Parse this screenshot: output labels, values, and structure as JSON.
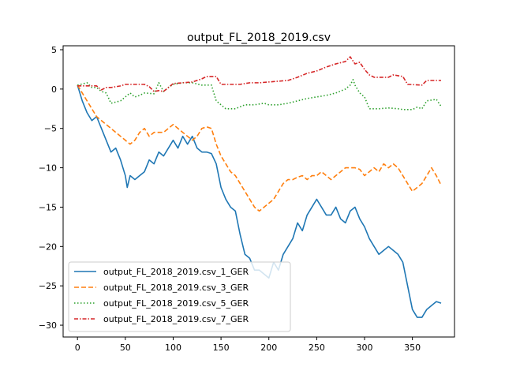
{
  "chart_data": {
    "type": "line",
    "title": "output_FL_2018_2019.csv",
    "xlabel": "",
    "ylabel": "",
    "xlim": [
      -15,
      394
    ],
    "ylim": [
      -31.5,
      5.5
    ],
    "xticks": [
      0,
      50,
      100,
      150,
      200,
      250,
      300,
      350
    ],
    "yticks": [
      5,
      0,
      -5,
      -10,
      -15,
      -20,
      -25,
      -30
    ],
    "xtick_labels": [
      "0",
      "50",
      "100",
      "150",
      "200",
      "250",
      "300",
      "350"
    ],
    "ytick_labels": [
      "5",
      "0",
      "−5",
      "−10",
      "−15",
      "−20",
      "−25",
      "−30"
    ],
    "grid": false,
    "legend_position": "lower-left",
    "series": [
      {
        "name": "output_FL_2018_2019.csv_1_GER",
        "color": "#1f77b4",
        "dash": "solid",
        "points": [
          [
            0,
            0.5
          ],
          [
            5,
            -1.5
          ],
          [
            10,
            -3
          ],
          [
            15,
            -4
          ],
          [
            20,
            -3.5
          ],
          [
            25,
            -5
          ],
          [
            30,
            -6.5
          ],
          [
            35,
            -8
          ],
          [
            40,
            -7.5
          ],
          [
            45,
            -9
          ],
          [
            50,
            -11
          ],
          [
            52,
            -12.5
          ],
          [
            55,
            -11
          ],
          [
            60,
            -11.5
          ],
          [
            65,
            -11
          ],
          [
            70,
            -10.5
          ],
          [
            75,
            -9
          ],
          [
            80,
            -9.5
          ],
          [
            85,
            -8
          ],
          [
            90,
            -8.5
          ],
          [
            95,
            -7.5
          ],
          [
            100,
            -6.5
          ],
          [
            105,
            -7.5
          ],
          [
            110,
            -6
          ],
          [
            115,
            -7
          ],
          [
            120,
            -6
          ],
          [
            125,
            -7.5
          ],
          [
            130,
            -8
          ],
          [
            135,
            -8
          ],
          [
            140,
            -8.2
          ],
          [
            145,
            -9.5
          ],
          [
            150,
            -12.5
          ],
          [
            155,
            -14
          ],
          [
            160,
            -15
          ],
          [
            165,
            -15.5
          ],
          [
            170,
            -18.5
          ],
          [
            175,
            -21
          ],
          [
            180,
            -21.5
          ],
          [
            185,
            -23
          ],
          [
            190,
            -23
          ],
          [
            195,
            -23.5
          ],
          [
            200,
            -24
          ],
          [
            205,
            -22
          ],
          [
            210,
            -23
          ],
          [
            215,
            -21
          ],
          [
            220,
            -20
          ],
          [
            225,
            -19
          ],
          [
            230,
            -17
          ],
          [
            235,
            -18
          ],
          [
            240,
            -16
          ],
          [
            245,
            -15
          ],
          [
            250,
            -14
          ],
          [
            255,
            -15
          ],
          [
            260,
            -16
          ],
          [
            265,
            -16
          ],
          [
            270,
            -15
          ],
          [
            275,
            -16.5
          ],
          [
            280,
            -17
          ],
          [
            285,
            -15.5
          ],
          [
            290,
            -15
          ],
          [
            295,
            -16.5
          ],
          [
            300,
            -17.5
          ],
          [
            305,
            -19
          ],
          [
            310,
            -20
          ],
          [
            315,
            -21
          ],
          [
            320,
            -20.5
          ],
          [
            325,
            -20
          ],
          [
            330,
            -20.5
          ],
          [
            335,
            -21
          ],
          [
            340,
            -22
          ],
          [
            345,
            -25
          ],
          [
            350,
            -28
          ],
          [
            355,
            -29
          ],
          [
            360,
            -29
          ],
          [
            365,
            -28
          ],
          [
            370,
            -27.5
          ],
          [
            375,
            -27
          ],
          [
            380,
            -27.2
          ]
        ]
      },
      {
        "name": "output_FL_2018_2019.csv_3_GER",
        "color": "#ff7f0e",
        "dash": "dashed",
        "points": [
          [
            0,
            0.5
          ],
          [
            5,
            -0.5
          ],
          [
            10,
            -1.5
          ],
          [
            15,
            -2.5
          ],
          [
            20,
            -3.5
          ],
          [
            25,
            -4
          ],
          [
            30,
            -4.5
          ],
          [
            35,
            -5
          ],
          [
            40,
            -5.5
          ],
          [
            45,
            -6
          ],
          [
            50,
            -6.5
          ],
          [
            55,
            -7
          ],
          [
            60,
            -6.5
          ],
          [
            65,
            -5.5
          ],
          [
            70,
            -5
          ],
          [
            75,
            -6
          ],
          [
            80,
            -5.5
          ],
          [
            85,
            -5.5
          ],
          [
            90,
            -5.5
          ],
          [
            95,
            -5
          ],
          [
            100,
            -4.5
          ],
          [
            105,
            -5
          ],
          [
            110,
            -5.5
          ],
          [
            115,
            -6
          ],
          [
            120,
            -6.5
          ],
          [
            125,
            -6
          ],
          [
            130,
            -5
          ],
          [
            135,
            -4.8
          ],
          [
            140,
            -5
          ],
          [
            145,
            -7
          ],
          [
            150,
            -8.5
          ],
          [
            155,
            -9.5
          ],
          [
            160,
            -10.5
          ],
          [
            165,
            -11
          ],
          [
            170,
            -12
          ],
          [
            175,
            -13
          ],
          [
            180,
            -14
          ],
          [
            185,
            -15
          ],
          [
            190,
            -15.5
          ],
          [
            195,
            -15
          ],
          [
            200,
            -14.5
          ],
          [
            205,
            -14
          ],
          [
            210,
            -13
          ],
          [
            215,
            -12
          ],
          [
            220,
            -11.5
          ],
          [
            225,
            -11.5
          ],
          [
            230,
            -11.2
          ],
          [
            235,
            -11
          ],
          [
            240,
            -11.5
          ],
          [
            245,
            -11
          ],
          [
            250,
            -11
          ],
          [
            255,
            -10.5
          ],
          [
            260,
            -11
          ],
          [
            265,
            -11.5
          ],
          [
            270,
            -11
          ],
          [
            275,
            -10.5
          ],
          [
            280,
            -10
          ],
          [
            285,
            -10
          ],
          [
            290,
            -10
          ],
          [
            295,
            -10.2
          ],
          [
            300,
            -11
          ],
          [
            305,
            -10.5
          ],
          [
            310,
            -10
          ],
          [
            315,
            -10.5
          ],
          [
            320,
            -9.5
          ],
          [
            325,
            -10
          ],
          [
            330,
            -9.5
          ],
          [
            335,
            -10
          ],
          [
            340,
            -11
          ],
          [
            345,
            -12
          ],
          [
            350,
            -13
          ],
          [
            355,
            -12.5
          ],
          [
            360,
            -12
          ],
          [
            365,
            -11
          ],
          [
            370,
            -10
          ],
          [
            375,
            -11
          ],
          [
            380,
            -12.2
          ]
        ]
      },
      {
        "name": "output_FL_2018_2019.csv_5_GER",
        "color": "#2ca02c",
        "dash": "dotted",
        "points": [
          [
            0,
            0.5
          ],
          [
            10,
            0.8
          ],
          [
            15,
            0.2
          ],
          [
            20,
            0.2
          ],
          [
            25,
            -0.3
          ],
          [
            30,
            -0.5
          ],
          [
            35,
            -1.8
          ],
          [
            45,
            -1.5
          ],
          [
            50,
            -1
          ],
          [
            55,
            -0.5
          ],
          [
            60,
            -1
          ],
          [
            65,
            -0.8
          ],
          [
            70,
            -0.5
          ],
          [
            80,
            -0.6
          ],
          [
            85,
            0.8
          ],
          [
            90,
            -0.3
          ],
          [
            95,
            0.2
          ],
          [
            100,
            0.6
          ],
          [
            110,
            0.8
          ],
          [
            120,
            0.8
          ],
          [
            130,
            0.5
          ],
          [
            140,
            0.5
          ],
          [
            145,
            -1.5
          ],
          [
            150,
            -2
          ],
          [
            155,
            -2.5
          ],
          [
            165,
            -2.5
          ],
          [
            175,
            -2
          ],
          [
            185,
            -2
          ],
          [
            195,
            -1.8
          ],
          [
            200,
            -2
          ],
          [
            210,
            -2
          ],
          [
            220,
            -1.8
          ],
          [
            230,
            -1.5
          ],
          [
            240,
            -1.2
          ],
          [
            250,
            -1
          ],
          [
            260,
            -0.8
          ],
          [
            270,
            -0.5
          ],
          [
            280,
            0
          ],
          [
            285,
            0.5
          ],
          [
            288,
            1.2
          ],
          [
            290,
            0.5
          ],
          [
            295,
            -0.5
          ],
          [
            300,
            -1
          ],
          [
            305,
            -2.5
          ],
          [
            315,
            -2.5
          ],
          [
            325,
            -2.4
          ],
          [
            335,
            -2.5
          ],
          [
            340,
            -2.6
          ],
          [
            350,
            -2.6
          ],
          [
            355,
            -2.3
          ],
          [
            360,
            -2.5
          ],
          [
            365,
            -1.5
          ],
          [
            375,
            -1.3
          ],
          [
            380,
            -2.2
          ]
        ]
      },
      {
        "name": "output_FL_2018_2019.csv_7_GER",
        "color": "#d62728",
        "dash": "dashdot",
        "points": [
          [
            0,
            0.4
          ],
          [
            10,
            0.4
          ],
          [
            20,
            0.4
          ],
          [
            25,
            -0.1
          ],
          [
            30,
            0.2
          ],
          [
            35,
            0.2
          ],
          [
            40,
            0.3
          ],
          [
            45,
            0.4
          ],
          [
            50,
            0.6
          ],
          [
            70,
            0.6
          ],
          [
            75,
            0.3
          ],
          [
            80,
            -0.3
          ],
          [
            85,
            -0.2
          ],
          [
            90,
            -0.3
          ],
          [
            95,
            0.2
          ],
          [
            100,
            0.7
          ],
          [
            110,
            0.8
          ],
          [
            120,
            0.9
          ],
          [
            130,
            1.3
          ],
          [
            135,
            1.6
          ],
          [
            145,
            1.6
          ],
          [
            150,
            0.6
          ],
          [
            170,
            0.6
          ],
          [
            180,
            0.8
          ],
          [
            190,
            0.8
          ],
          [
            200,
            0.9
          ],
          [
            210,
            1
          ],
          [
            220,
            1.1
          ],
          [
            230,
            1.5
          ],
          [
            240,
            2
          ],
          [
            250,
            2.3
          ],
          [
            260,
            2.8
          ],
          [
            270,
            3.2
          ],
          [
            280,
            3.5
          ],
          [
            285,
            4.1
          ],
          [
            290,
            3.2
          ],
          [
            295,
            3.4
          ],
          [
            300,
            2.5
          ],
          [
            305,
            1.8
          ],
          [
            310,
            1.5
          ],
          [
            325,
            1.5
          ],
          [
            330,
            1.8
          ],
          [
            340,
            1.6
          ],
          [
            345,
            0.6
          ],
          [
            360,
            0.5
          ],
          [
            365,
            1.1
          ],
          [
            380,
            1.1
          ]
        ]
      }
    ]
  }
}
